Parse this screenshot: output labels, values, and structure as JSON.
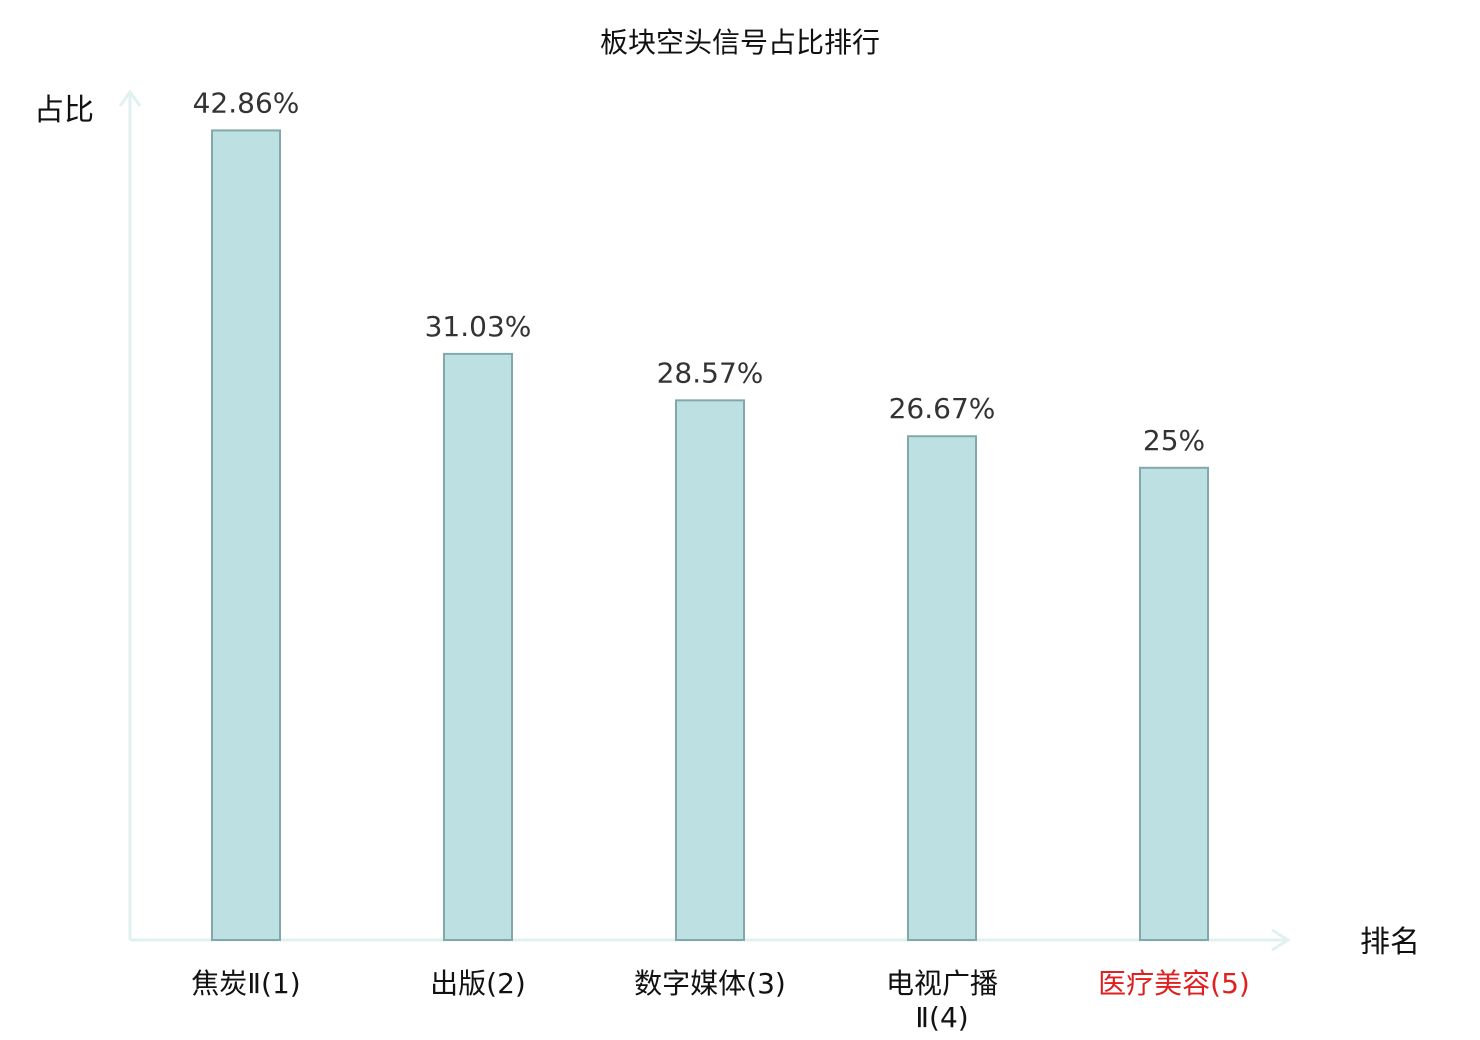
{
  "chart_data": {
    "type": "bar",
    "title": "板块空头信号占比排行",
    "ylabel": "占比",
    "xlabel": "排名",
    "categories": [
      [
        "焦炭Ⅱ(1)"
      ],
      [
        "出版(2)"
      ],
      [
        "数字媒体(3)"
      ],
      [
        "电视广播",
        "Ⅱ(4)"
      ],
      [
        "医疗美容(5)"
      ]
    ],
    "values": [
      42.86,
      31.03,
      28.57,
      26.67,
      25
    ],
    "value_labels": [
      "42.86%",
      "31.03%",
      "28.57%",
      "26.67%",
      "25%"
    ],
    "highlight_index": 4,
    "ylim": [
      0,
      45
    ],
    "grid": false,
    "colors": {
      "bar_fill": "#bde1e3",
      "bar_stroke": "#82a8ab",
      "axis": "#e0f2ef",
      "highlight_label": "#e02020"
    }
  }
}
